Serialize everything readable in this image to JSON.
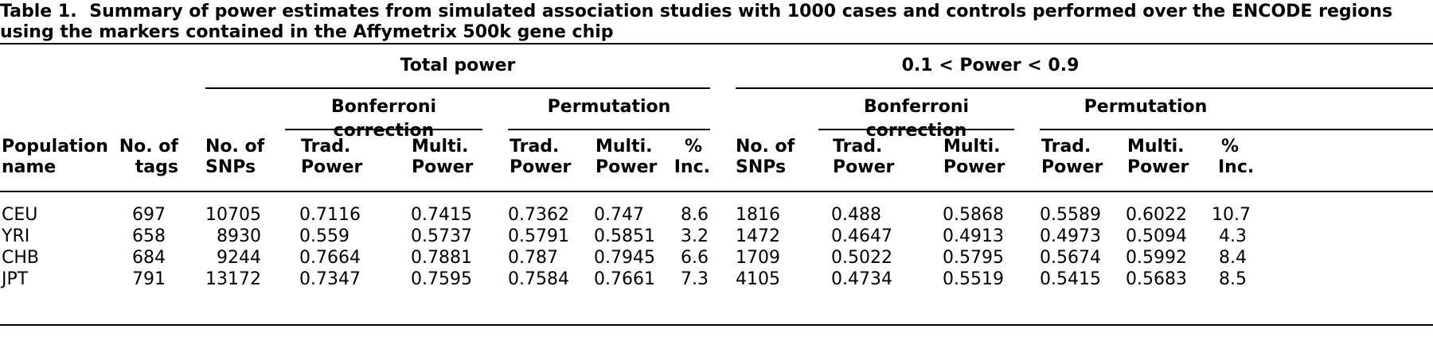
{
  "caption": {
    "label": "Table 1.",
    "text": "Summary of power estimates from simulated association studies with 1000 cases and controls performed over the ENCODE regions using the markers contained in the Affymetrix 500k gene chip"
  },
  "groups": {
    "total_power": "Total power",
    "mid_power": "0.1 < Power < 0.9",
    "bonferroni_1": "Bonferroni correction",
    "permutation_1": "Permutation",
    "bonferroni_2": "Bonferroni correction",
    "permutation_2": "Permutation"
  },
  "columns": {
    "population": [
      "Population",
      "name"
    ],
    "tags": [
      "No. of",
      "tags"
    ],
    "snps_1": [
      "No. of",
      "SNPs"
    ],
    "bonf_trad_1": [
      "Trad.",
      "Power"
    ],
    "bonf_multi_1": [
      "Multi.",
      "Power"
    ],
    "perm_trad_1": [
      "Trad.",
      "Power"
    ],
    "perm_multi_1": [
      "Multi.",
      "Power"
    ],
    "inc_1": [
      "%",
      "Inc."
    ],
    "snps_2": [
      "No. of",
      "SNPs"
    ],
    "bonf_trad_2": [
      "Trad.",
      "Power"
    ],
    "bonf_multi_2": [
      "Multi.",
      "Power"
    ],
    "perm_trad_2": [
      "Trad.",
      "Power"
    ],
    "perm_multi_2": [
      "Multi.",
      "Power"
    ],
    "inc_2": [
      "%",
      "Inc."
    ]
  },
  "rows": [
    [
      "CEU",
      "697",
      "10705",
      "0.7116",
      "0.7415",
      "0.7362",
      "0.747",
      "8.6",
      "1816",
      "0.488",
      "0.5868",
      "0.5589",
      "0.6022",
      "10.7"
    ],
    [
      "YRI",
      "658",
      "8930",
      "0.559",
      "0.5737",
      "0.5791",
      "0.5851",
      "3.2",
      "1472",
      "0.4647",
      "0.4913",
      "0.4973",
      "0.5094",
      "4.3"
    ],
    [
      "CHB",
      "684",
      "9244",
      "0.7664",
      "0.7881",
      "0.787",
      "0.7945",
      "6.6",
      "1709",
      "0.5022",
      "0.5795",
      "0.5674",
      "0.5992",
      "8.4"
    ],
    [
      "JPT",
      "791",
      "13172",
      "0.7347",
      "0.7595",
      "0.7584",
      "0.7661",
      "7.3",
      "4105",
      "0.4734",
      "0.5519",
      "0.5415",
      "0.5683",
      "8.5"
    ]
  ]
}
